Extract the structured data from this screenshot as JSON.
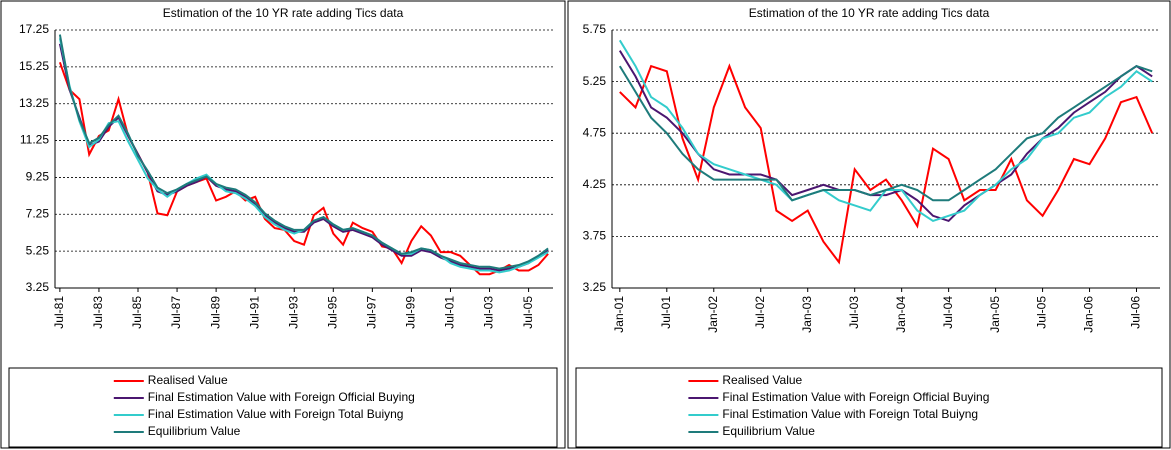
{
  "chart_data": [
    {
      "type": "line",
      "title": "Estimation of the 10 YR rate adding Tics data",
      "categories": [
        "Jul-81",
        null,
        null,
        null,
        "Jul-83",
        null,
        null,
        null,
        "Jul-85",
        null,
        null,
        null,
        "Jul-87",
        null,
        null,
        null,
        "Jul-89",
        null,
        null,
        null,
        "Jul-91",
        null,
        null,
        null,
        "Jul-93",
        null,
        null,
        null,
        "Jul-95",
        null,
        null,
        null,
        "Jul-97",
        null,
        null,
        null,
        "Jul-99",
        null,
        null,
        null,
        "Jul-01",
        null,
        null,
        null,
        "Jul-03",
        null,
        null,
        null,
        "Jul-05",
        null,
        null
      ],
      "series": [
        {
          "name": "Realised Value",
          "color": "#ff0000",
          "values": [
            15.5,
            14,
            13.5,
            10.5,
            11.5,
            11.8,
            13.5,
            11.5,
            10.5,
            9.5,
            7.3,
            7.2,
            8.5,
            8.8,
            9.0,
            9.2,
            8.0,
            8.2,
            8.5,
            8.0,
            8.2,
            7.0,
            6.5,
            6.4,
            5.8,
            5.6,
            7.2,
            7.6,
            6.2,
            5.6,
            6.8,
            6.5,
            6.3,
            5.5,
            5.4,
            4.6,
            5.8,
            6.6,
            6.1,
            5.2,
            5.2,
            5.0,
            4.5,
            4.0,
            4.0,
            4.2,
            4.5,
            4.2,
            4.2,
            4.5,
            5.1
          ]
        },
        {
          "name": "Final Estimation Value with Foreign Official Buying",
          "color": "#4b1670",
          "values": [
            16.5,
            14,
            12.5,
            11,
            11.2,
            12,
            12.5,
            11.5,
            10.5,
            9.5,
            8.5,
            8.3,
            8.5,
            8.8,
            9.0,
            9.3,
            8.8,
            8.6,
            8.5,
            8.2,
            7.8,
            7.2,
            6.8,
            6.5,
            6.3,
            6.3,
            6.8,
            7.0,
            6.6,
            6.3,
            6.4,
            6.2,
            6.0,
            5.6,
            5.3,
            5.0,
            5.0,
            5.3,
            5.2,
            4.9,
            4.7,
            4.5,
            4.4,
            4.3,
            4.3,
            4.2,
            4.3,
            4.4,
            4.6,
            5.0,
            5.3
          ]
        },
        {
          "name": "Final Estimation Value with Foreign Total Buiyng",
          "color": "#33cccc",
          "values": [
            16.8,
            14.2,
            12.3,
            10.9,
            11.3,
            12.2,
            12.3,
            11.2,
            10.2,
            9.2,
            8.6,
            8.2,
            8.6,
            8.9,
            9.2,
            9.4,
            8.9,
            8.5,
            8.4,
            8.1,
            7.7,
            7.1,
            6.7,
            6.4,
            6.2,
            6.4,
            6.9,
            7.1,
            6.7,
            6.4,
            6.5,
            6.3,
            6.1,
            5.7,
            5.4,
            5.1,
            5.1,
            5.4,
            5.3,
            5.0,
            4.6,
            4.4,
            4.3,
            4.2,
            4.2,
            4.1,
            4.2,
            4.4,
            4.6,
            4.9,
            5.2
          ]
        },
        {
          "name": "Equilibrium Value",
          "color": "#1e7b7b",
          "values": [
            17.0,
            14.1,
            12.4,
            11.1,
            11.4,
            12.1,
            12.6,
            11.6,
            10.4,
            9.6,
            8.7,
            8.4,
            8.6,
            8.9,
            9.1,
            9.3,
            8.9,
            8.7,
            8.6,
            8.3,
            7.9,
            7.3,
            6.9,
            6.6,
            6.4,
            6.4,
            6.9,
            7.1,
            6.7,
            6.4,
            6.5,
            6.3,
            6.1,
            5.7,
            5.4,
            5.1,
            5.2,
            5.4,
            5.3,
            5.0,
            4.8,
            4.6,
            4.5,
            4.4,
            4.4,
            4.3,
            4.4,
            4.5,
            4.7,
            5.0,
            5.4
          ]
        }
      ],
      "ylim": [
        3.25,
        17.25
      ],
      "yticks": [
        3.25,
        5.25,
        7.25,
        9.25,
        11.25,
        13.25,
        15.25,
        17.25
      ],
      "grid": true,
      "legend": "bottom"
    },
    {
      "type": "line",
      "title": "Estimation of the 10 YR rate adding Tics data",
      "categories": [
        "Jan-01",
        null,
        null,
        "Jul-01",
        null,
        null,
        "Jan-02",
        null,
        null,
        "Jul-02",
        null,
        null,
        "Jan-03",
        null,
        null,
        "Jul-03",
        null,
        null,
        "Jan-04",
        null,
        null,
        "Jul-04",
        null,
        null,
        "Jan-05",
        null,
        null,
        "Jul-05",
        null,
        null,
        "Jan-06",
        null,
        null,
        "Jul-06",
        null
      ],
      "series": [
        {
          "name": "Realised Value",
          "color": "#ff0000",
          "values": [
            5.15,
            5.0,
            5.4,
            5.35,
            4.7,
            4.3,
            5.0,
            5.4,
            5.0,
            4.8,
            4.0,
            3.9,
            4.0,
            3.7,
            3.5,
            4.4,
            4.2,
            4.3,
            4.1,
            3.85,
            4.6,
            4.5,
            4.1,
            4.2,
            4.2,
            4.5,
            4.1,
            3.95,
            4.2,
            4.5,
            4.45,
            4.7,
            5.05,
            5.1,
            4.75
          ]
        },
        {
          "name": "Final Estimation Value with Foreign Official Buying",
          "color": "#4b1670",
          "values": [
            5.55,
            5.3,
            5.0,
            4.9,
            4.75,
            4.55,
            4.4,
            4.35,
            4.35,
            4.35,
            4.3,
            4.15,
            4.2,
            4.25,
            4.2,
            4.2,
            4.15,
            4.15,
            4.2,
            4.1,
            3.95,
            3.9,
            4.05,
            4.15,
            4.25,
            4.35,
            4.55,
            4.7,
            4.8,
            4.95,
            5.05,
            5.15,
            5.3,
            5.4,
            5.3
          ]
        },
        {
          "name": "Final Estimation Value with Foreign Total Buiyng",
          "color": "#33cccc",
          "values": [
            5.65,
            5.4,
            5.1,
            5.0,
            4.8,
            4.55,
            4.45,
            4.4,
            4.35,
            4.3,
            4.25,
            4.1,
            4.15,
            4.2,
            4.1,
            4.05,
            4.0,
            4.2,
            4.2,
            4.0,
            3.9,
            3.95,
            4.0,
            4.15,
            4.25,
            4.4,
            4.5,
            4.7,
            4.75,
            4.9,
            4.95,
            5.1,
            5.2,
            5.35,
            5.25
          ]
        },
        {
          "name": "Equilibrium Value",
          "color": "#1e7b7b",
          "values": [
            5.4,
            5.15,
            4.9,
            4.75,
            4.55,
            4.4,
            4.3,
            4.3,
            4.3,
            4.3,
            4.3,
            4.1,
            4.15,
            4.2,
            4.2,
            4.2,
            4.15,
            4.2,
            4.25,
            4.2,
            4.1,
            4.1,
            4.2,
            4.3,
            4.4,
            4.55,
            4.7,
            4.75,
            4.9,
            5.0,
            5.1,
            5.2,
            5.3,
            5.4,
            5.35
          ]
        }
      ],
      "ylim": [
        3.25,
        5.75
      ],
      "yticks": [
        3.25,
        3.75,
        4.25,
        4.75,
        5.25,
        5.75
      ],
      "grid": true,
      "legend": "bottom"
    }
  ]
}
